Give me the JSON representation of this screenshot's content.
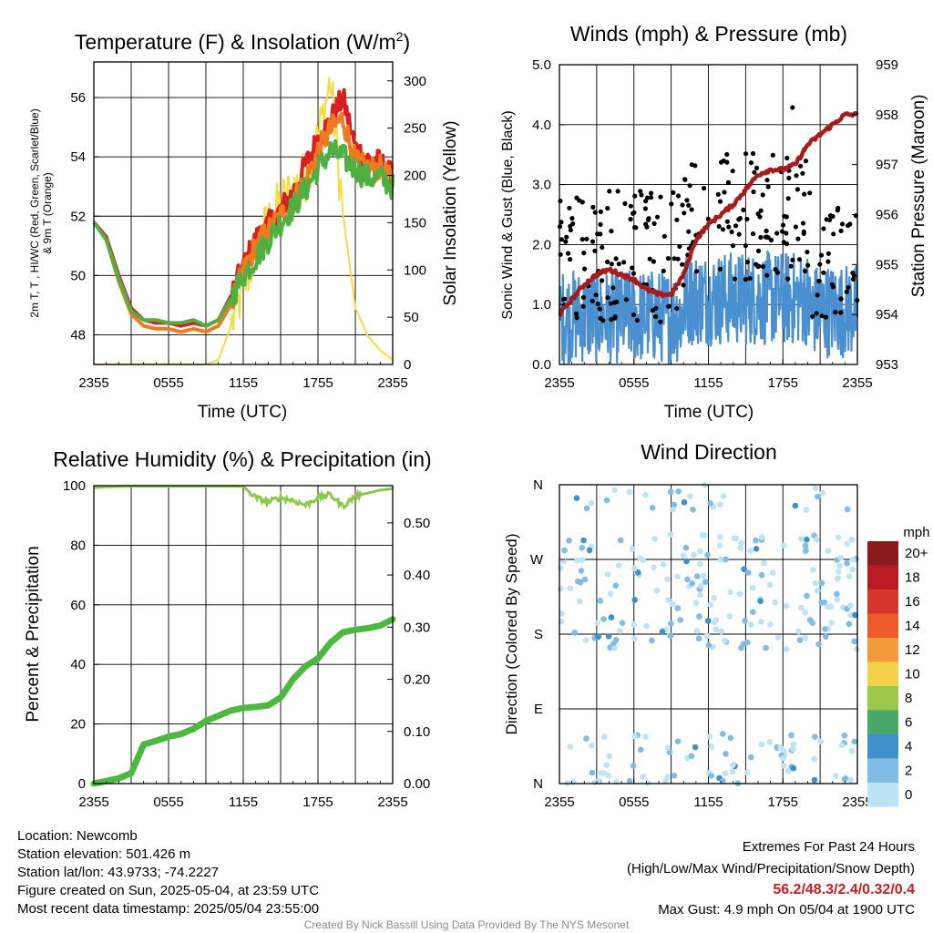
{
  "chart_data": [
    {
      "type": "line",
      "title": "Temperature (F) & Insolation (W/m²)",
      "title_main": "Temperature (F) & Insolation (W/m",
      "title_sup": "2",
      "title_end": ")",
      "xlabel": "Time (UTC)",
      "ylabel_left_line1": "2m T, T , HI/WC (Red, Green, Scarlet/Blue)",
      "ylabel_left_line2": "& 9m T (Orange)",
      "ylabel_right": "Solar Insolation (Yellow)",
      "x_ticks": [
        "2355",
        "0555",
        "1155",
        "1755",
        "2355"
      ],
      "ylim": [
        47,
        57.2
      ],
      "y_ticks": [
        48,
        50,
        52,
        54,
        56
      ],
      "ylim_right": [
        0,
        320
      ],
      "y_ticks_right": [
        0,
        50,
        100,
        150,
        200,
        250,
        300
      ],
      "x_hours": [
        0,
        1,
        2,
        3,
        4,
        5,
        6,
        7,
        8,
        9,
        10,
        11,
        12,
        13,
        14,
        15,
        16,
        17,
        18,
        19,
        20,
        21,
        22,
        23,
        24
      ],
      "series": [
        {
          "color": "#d62020",
          "values": [
            51.8,
            51.3,
            50.0,
            48.9,
            48.5,
            48.4,
            48.4,
            48.3,
            48.4,
            48.3,
            48.5,
            49.3,
            50.3,
            51.2,
            51.7,
            52.2,
            52.8,
            53.7,
            54.6,
            55.2,
            56.0,
            54.3,
            53.9,
            53.8,
            53.3
          ]
        },
        {
          "color": "#f07a20",
          "values": [
            51.8,
            51.2,
            49.8,
            48.7,
            48.3,
            48.2,
            48.2,
            48.1,
            48.2,
            48.1,
            48.3,
            49.0,
            50.1,
            51.0,
            51.5,
            52.0,
            52.5,
            53.2,
            54.2,
            54.9,
            55.3,
            53.8,
            53.6,
            53.6,
            53.1
          ]
        },
        {
          "color": "#4eb040",
          "values": [
            51.8,
            51.2,
            49.9,
            48.8,
            48.5,
            48.5,
            48.4,
            48.4,
            48.5,
            48.3,
            48.5,
            49.2,
            50.0,
            50.6,
            51.2,
            51.8,
            52.3,
            52.9,
            53.6,
            54.2,
            54.0,
            53.6,
            53.3,
            53.3,
            53.0
          ]
        }
      ],
      "insolation": {
        "color": "#f5dc45",
        "values": [
          0,
          0,
          0,
          0,
          0,
          0,
          0,
          0,
          0,
          0,
          5,
          40,
          80,
          120,
          150,
          170,
          185,
          200,
          240,
          300,
          160,
          60,
          30,
          15,
          5
        ]
      }
    },
    {
      "type": "scatter",
      "title": "Winds (mph) & Pressure (mb)",
      "xlabel": "Time (UTC)",
      "ylabel": "Sonic Wind & Gust (Blue, Black)",
      "ylabel_right": "Station Pressure (Maroon)",
      "x_ticks": [
        "2355",
        "0555",
        "1155",
        "1755",
        "2355"
      ],
      "ylim": [
        0,
        5
      ],
      "y_ticks": [
        "0.0",
        "1.0",
        "2.0",
        "3.0",
        "4.0",
        "5.0"
      ],
      "ylim_right": [
        953,
        959
      ],
      "y_ticks_right": [
        953,
        954,
        955,
        956,
        957,
        958,
        959
      ],
      "wind_color": "#4a90d0",
      "gust_color": "#000000",
      "pressure": {
        "color": "#a51c1c",
        "x_hours": [
          0,
          1,
          2,
          3,
          4,
          5,
          6,
          7,
          8,
          9,
          10,
          11,
          12,
          13,
          14,
          15,
          16,
          17,
          18,
          19,
          20,
          21,
          22,
          23,
          24
        ],
        "values": [
          954.0,
          954.3,
          954.6,
          954.8,
          954.9,
          954.8,
          954.7,
          954.5,
          954.4,
          954.4,
          954.8,
          955.5,
          955.8,
          956.0,
          956.2,
          956.5,
          956.8,
          956.9,
          956.9,
          957.0,
          957.4,
          957.6,
          957.8,
          958.0,
          958.0
        ]
      }
    },
    {
      "type": "line",
      "title": "Relative Humidity (%) & Precipitation (in)",
      "ylabel": "Percent & Precipitation",
      "x_ticks": [
        "2355",
        "0555",
        "1155",
        "1755",
        "2355"
      ],
      "ylim": [
        0,
        100
      ],
      "y_ticks": [
        0,
        20,
        40,
        60,
        80,
        100
      ],
      "ylim_right": [
        0,
        0.5714
      ],
      "y_ticks_right": [
        "0.00",
        "0.10",
        "0.20",
        "0.30",
        "0.40",
        "0.50"
      ],
      "x_hours": [
        0,
        1,
        2,
        3,
        4,
        5,
        6,
        7,
        8,
        9,
        10,
        11,
        12,
        13,
        14,
        15,
        16,
        17,
        18,
        19,
        20,
        21,
        22,
        23,
        24
      ],
      "series": [
        {
          "color": "#8cc84a",
          "values": [
            99.3,
            99.6,
            99.7,
            99.8,
            99.8,
            99.8,
            99.8,
            99.8,
            99.8,
            99.8,
            99.8,
            99.8,
            99.7,
            96.0,
            94.5,
            96.0,
            95.0,
            93.5,
            96.0,
            97.0,
            93.0,
            96.5,
            97.5,
            98.5,
            99.0
          ]
        },
        {
          "color": "#4db841",
          "values": [
            0.0,
            0.005,
            0.01,
            0.02,
            0.075,
            0.082,
            0.09,
            0.095,
            0.105,
            0.12,
            0.13,
            0.14,
            0.145,
            0.147,
            0.15,
            0.165,
            0.2,
            0.225,
            0.24,
            0.27,
            0.29,
            0.295,
            0.298,
            0.303,
            0.315
          ]
        }
      ]
    },
    {
      "type": "scatter",
      "title": "Wind Direction",
      "ylabel": "Direction (Colored By Speed)",
      "x_ticks": [
        "2355",
        "0555",
        "1155",
        "1755",
        "2355"
      ],
      "y_ticks": [
        "N",
        "E",
        "S",
        "W",
        "N"
      ],
      "ylim": [
        0,
        360
      ],
      "colorbar": {
        "title": "mph",
        "labels": [
          "20+",
          "18",
          "16",
          "14",
          "12",
          "10",
          "8",
          "6",
          "4",
          "2",
          "0"
        ],
        "colors": [
          "#8b1a1a",
          "#b81c22",
          "#d6362b",
          "#ee5a2a",
          "#f39a3c",
          "#f3d24a",
          "#9cc84a",
          "#49a86a",
          "#3f8fca",
          "#7fbde6",
          "#bde3f6"
        ]
      }
    }
  ],
  "footer": {
    "location": "Location: Newcomb",
    "elevation": "Station elevation: 501.426 m",
    "latlon": "Station lat/lon: 43.9733; -74.2227",
    "created": "Figure created on Sun, 2025-05-04, at 23:59 UTC",
    "recent": "Most recent data timestamp: 2025/05/04 23:55:00",
    "extremes_title": "Extremes For Past 24 Hours",
    "extremes_sub": "(High/Low/Max Wind/Precipitation/Snow Depth)",
    "extremes_values": "56.2/48.3/2.4/0.32/0.4",
    "max_gust": "Max Gust: 4.9 mph On 05/04 at 1900 UTC",
    "credit": "Created By Nick Bassill Using Data Provided By The NYS Mesonet"
  }
}
